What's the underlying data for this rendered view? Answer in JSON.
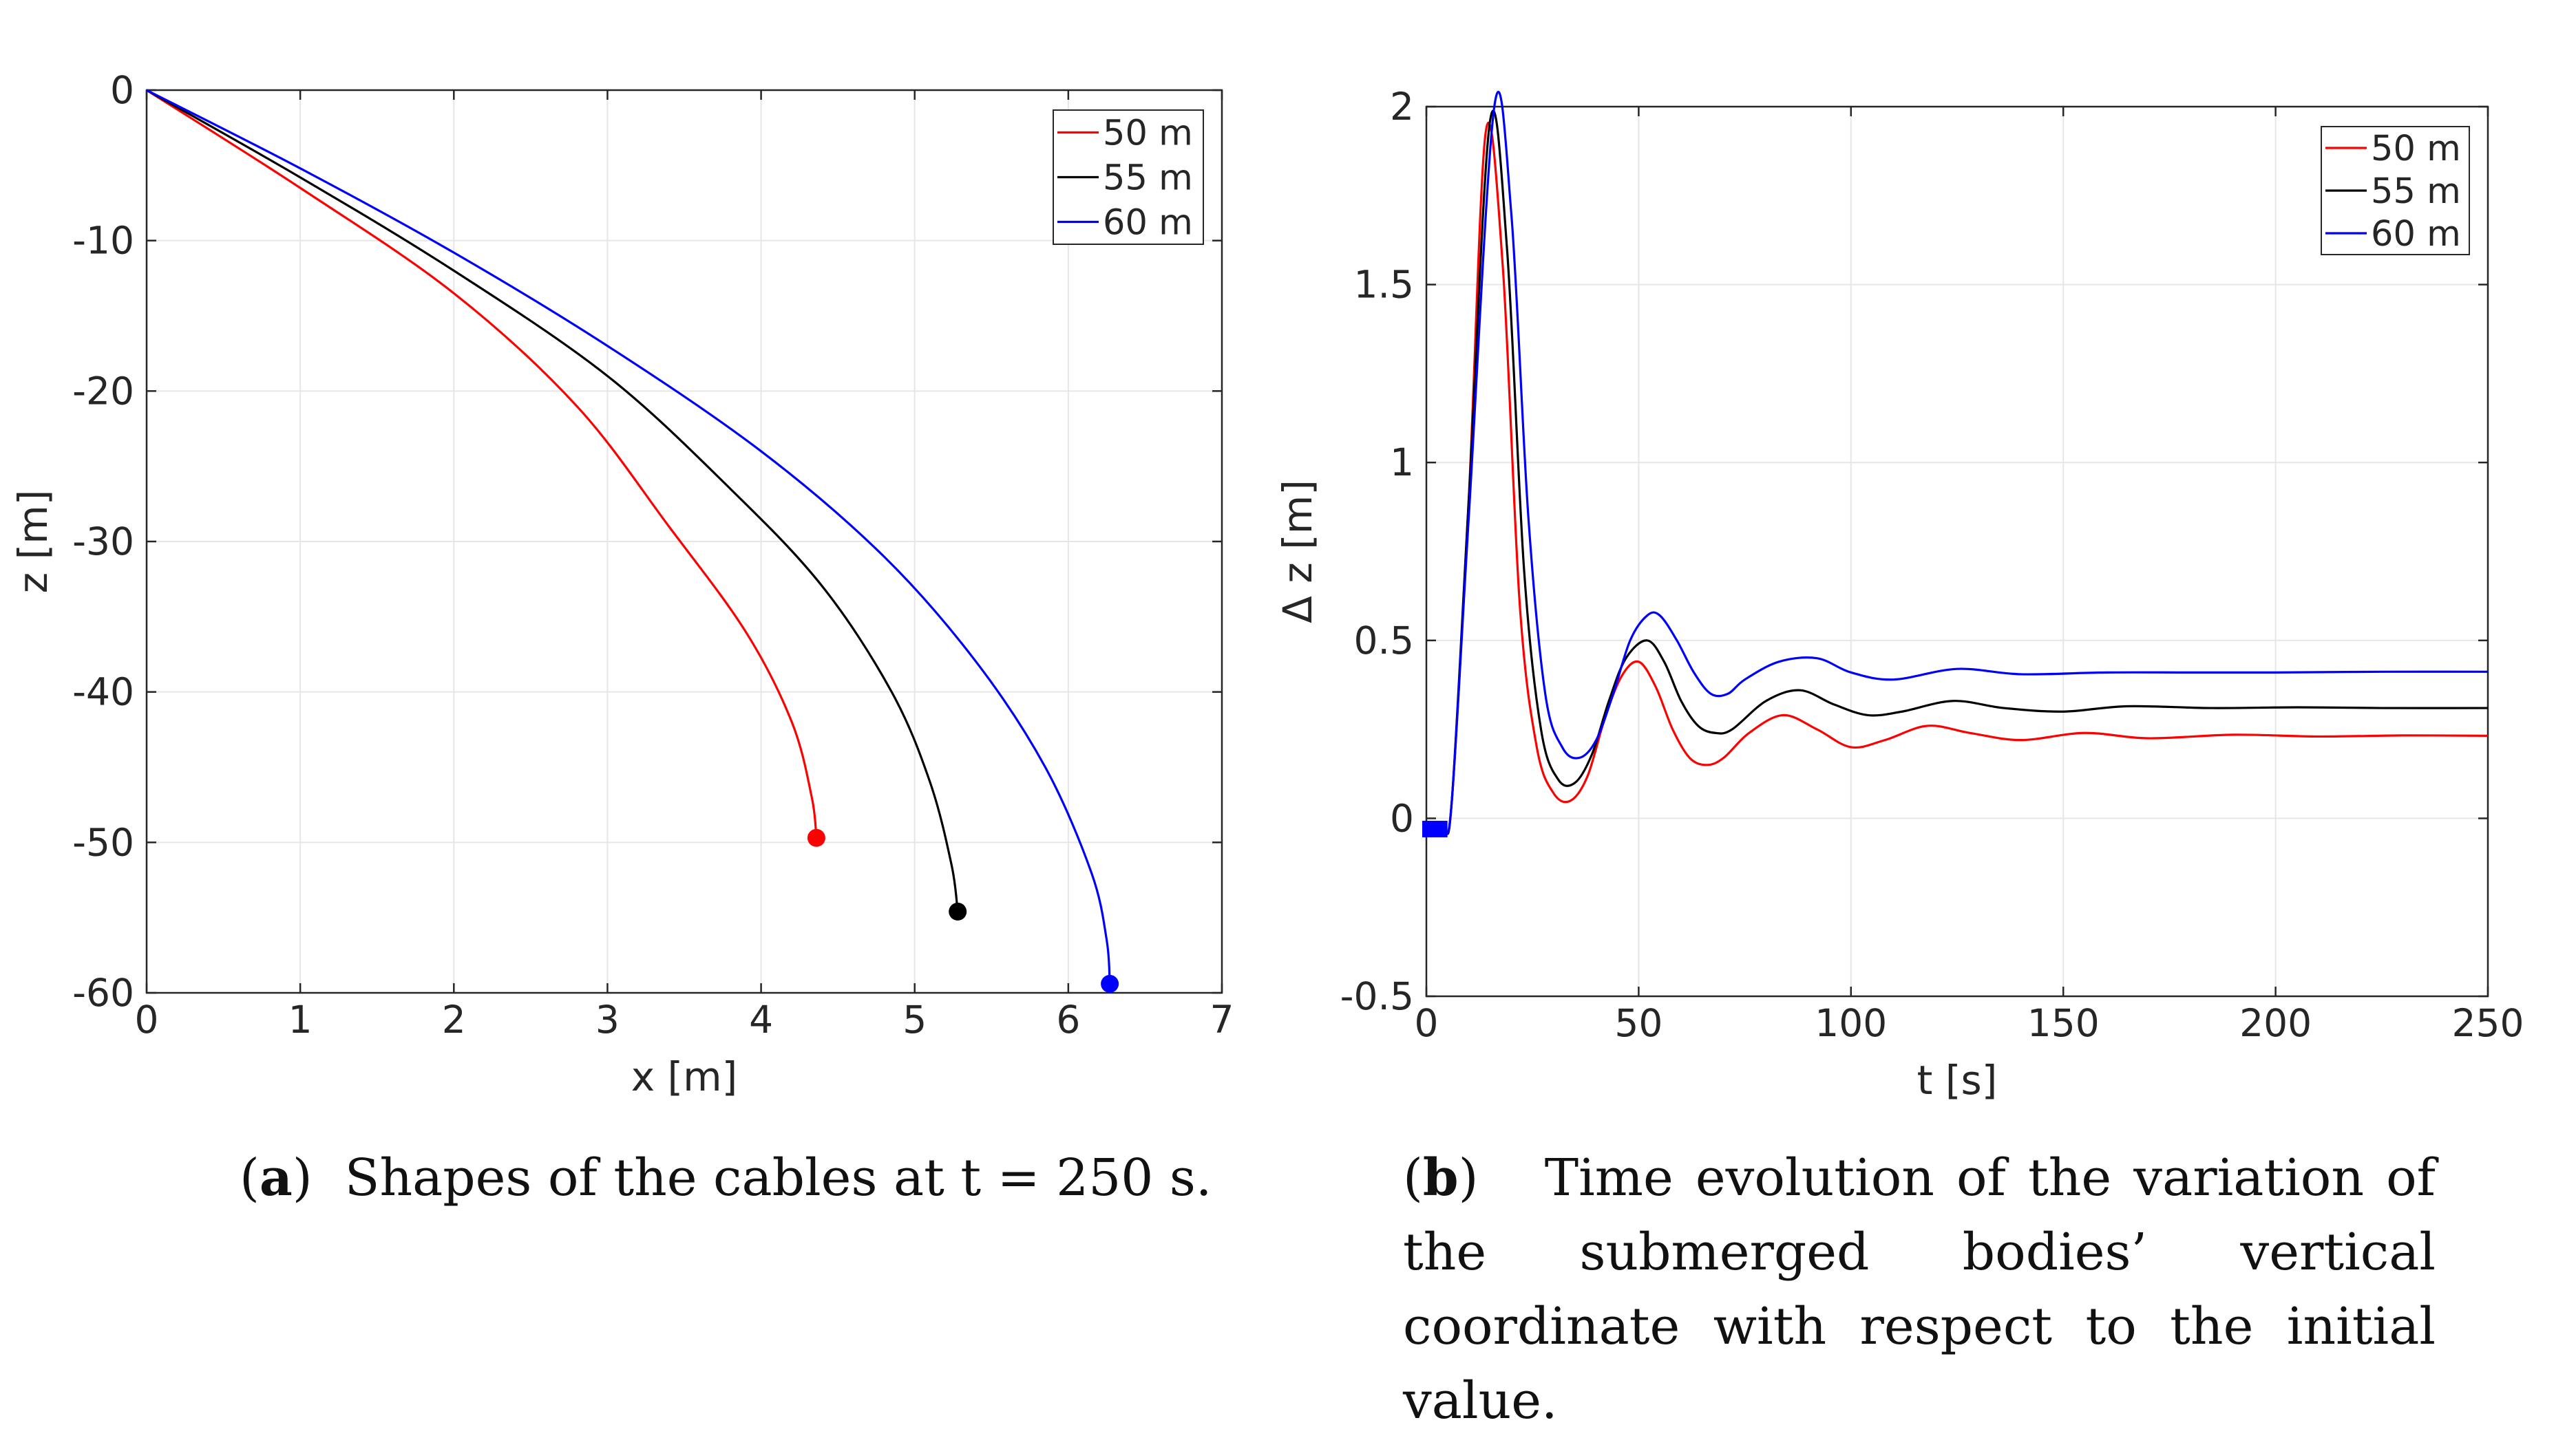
{
  "figure": {
    "colors": {
      "red": "#ff0000",
      "black": "#000000",
      "blue": "#0000ff",
      "grid": "#e6e6e6",
      "axis": "#262626"
    },
    "captions": {
      "a": {
        "letter": "a",
        "text": "Shapes of the cables at t = 250 s."
      },
      "b": {
        "letter": "b",
        "text": "Time evolution of the variation of the submerged bodies’ vertical coordinate with respect to the initial value."
      }
    }
  },
  "chart_data": [
    {
      "type": "line",
      "id": "a",
      "title": "Shapes of the cables at t = 250 s.",
      "xlabel": "x [m]",
      "ylabel": "z [m]",
      "xlim": [
        0,
        7
      ],
      "ylim": [
        -60,
        0
      ],
      "xticks": [
        0,
        1,
        2,
        3,
        4,
        5,
        6,
        7
      ],
      "yticks": [
        0,
        -10,
        -20,
        -30,
        -40,
        -50,
        -60
      ],
      "grid": true,
      "legend": "top-right",
      "series": [
        {
          "name": "50 m",
          "color": "#ff0000",
          "x": [
            0,
            1.0,
            2.0,
            2.8,
            3.4,
            3.9,
            4.2,
            4.33,
            4.36
          ],
          "y": [
            0,
            -6.5,
            -13.5,
            -21,
            -29,
            -36,
            -42,
            -47,
            -49.7
          ],
          "end_marker": [
            4.36,
            -49.7
          ]
        },
        {
          "name": "55 m",
          "color": "#000000",
          "x": [
            0,
            1.0,
            2.0,
            3.0,
            3.8,
            4.4,
            4.85,
            5.1,
            5.24,
            5.28
          ],
          "y": [
            0,
            -5.8,
            -12,
            -19,
            -26.5,
            -33,
            -40,
            -46,
            -51.5,
            -54.6
          ],
          "end_marker": [
            5.28,
            -54.6
          ]
        },
        {
          "name": "60 m",
          "color": "#0000ff",
          "x": [
            0,
            1.0,
            2.0,
            3.0,
            4.0,
            4.8,
            5.4,
            5.85,
            6.15,
            6.25,
            6.27
          ],
          "y": [
            0,
            -5.2,
            -10.8,
            -17,
            -24,
            -31,
            -38,
            -45,
            -52,
            -56.5,
            -59.4
          ],
          "end_marker": [
            6.27,
            -59.4
          ]
        }
      ]
    },
    {
      "type": "line",
      "id": "b",
      "title": "Time evolution of the variation of the submerged bodies’ vertical coordinate with respect to the initial value.",
      "xlabel": "t [s]",
      "ylabel": "Δ z [m]",
      "xlim": [
        0,
        250
      ],
      "ylim": [
        -0.5,
        2
      ],
      "xticks": [
        0,
        50,
        100,
        150,
        200,
        250
      ],
      "yticks": [
        -0.5,
        0,
        0.5,
        1,
        1.5,
        2
      ],
      "grid": true,
      "legend": "top-right",
      "series": [
        {
          "name": "50 m",
          "color": "#ff0000",
          "x": [
            0,
            4,
            6,
            10,
            14,
            18,
            22,
            26,
            30,
            34,
            38,
            42,
            46,
            50,
            54,
            58,
            62,
            66,
            70,
            76,
            84,
            92,
            100,
            108,
            118,
            128,
            140,
            155,
            170,
            190,
            210,
            230,
            250
          ],
          "y": [
            -0.03,
            -0.03,
            0.05,
            0.9,
            1.93,
            1.55,
            0.6,
            0.2,
            0.07,
            0.05,
            0.12,
            0.28,
            0.4,
            0.44,
            0.37,
            0.25,
            0.17,
            0.15,
            0.17,
            0.24,
            0.29,
            0.25,
            0.2,
            0.22,
            0.26,
            0.24,
            0.22,
            0.24,
            0.225,
            0.235,
            0.23,
            0.233,
            0.232
          ]
        },
        {
          "name": "55 m",
          "color": "#000000",
          "x": [
            0,
            4,
            6,
            10,
            15,
            19,
            23,
            27,
            31,
            35,
            39,
            43,
            47,
            52,
            56,
            60,
            64,
            68,
            72,
            80,
            88,
            96,
            104,
            112,
            124,
            136,
            150,
            165,
            185,
            205,
            225,
            250
          ],
          "y": [
            -0.03,
            -0.03,
            0.05,
            0.9,
            1.96,
            1.6,
            0.7,
            0.25,
            0.11,
            0.1,
            0.18,
            0.33,
            0.45,
            0.5,
            0.44,
            0.33,
            0.26,
            0.24,
            0.25,
            0.33,
            0.36,
            0.32,
            0.29,
            0.3,
            0.33,
            0.31,
            0.3,
            0.315,
            0.31,
            0.312,
            0.31,
            0.31
          ]
        },
        {
          "name": "60 m",
          "color": "#0000ff",
          "x": [
            0,
            4,
            6,
            10,
            16,
            20,
            24,
            28,
            32,
            36,
            40,
            44,
            48,
            52,
            55,
            59,
            63,
            67,
            71,
            75,
            83,
            92,
            100,
            110,
            125,
            140,
            160,
            180,
            200,
            225,
            250
          ],
          "y": [
            -0.03,
            -0.03,
            0.05,
            0.85,
            2.0,
            1.7,
            0.85,
            0.35,
            0.2,
            0.17,
            0.22,
            0.35,
            0.5,
            0.57,
            0.57,
            0.5,
            0.41,
            0.35,
            0.35,
            0.39,
            0.44,
            0.45,
            0.41,
            0.39,
            0.42,
            0.405,
            0.41,
            0.41,
            0.41,
            0.412,
            0.412
          ]
        }
      ]
    }
  ]
}
